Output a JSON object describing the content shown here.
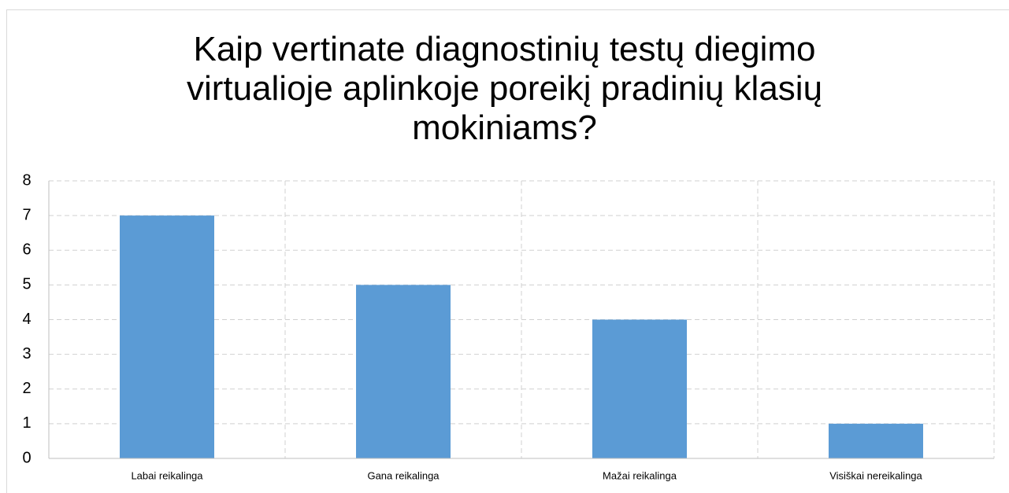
{
  "chart_data": {
    "type": "bar",
    "title": "Kaip vertinate diagnostinių testų diegimo\nvirtualioje aplinkoje poreikį pradinių klasių\nmokiniams?",
    "categories": [
      "Labai reikalinga",
      "Gana reikalinga",
      "Mažai reikalinga",
      "Visiškai nereikalinga"
    ],
    "values": [
      7,
      5,
      4,
      1
    ],
    "color": "#5b9bd5",
    "ylim": [
      0,
      8
    ],
    "yticks": [
      0,
      1,
      2,
      3,
      4,
      5,
      6,
      7,
      8
    ],
    "grid": true
  }
}
